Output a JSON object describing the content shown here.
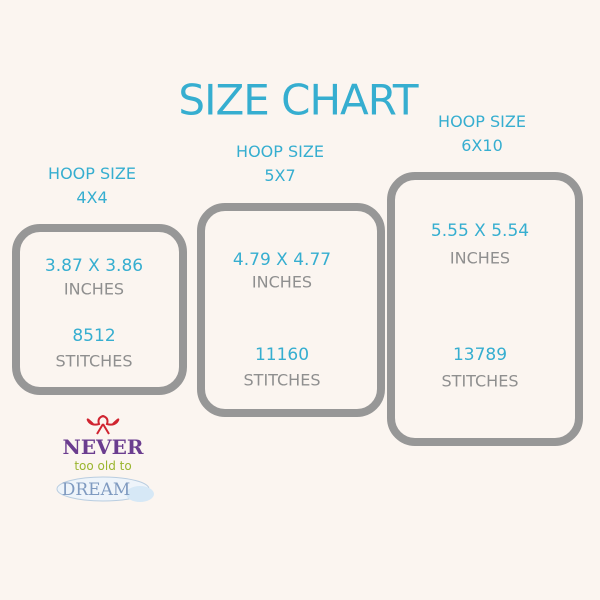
{
  "title": "SIZE CHART",
  "hoops": [
    {
      "label": "HOOP SIZE",
      "size": "4X4",
      "dimensions": "3.87 X 3.86",
      "dim_unit": "INCHES",
      "stitches": "8512",
      "stitch_unit": "STITCHES"
    },
    {
      "label": "HOOP SIZE",
      "size": "5X7",
      "dimensions": "4.79 X 4.77",
      "dim_unit": "INCHES",
      "stitches": "11160",
      "stitch_unit": "STITCHES"
    },
    {
      "label": "HOOP SIZE",
      "size": "6X10",
      "dimensions": "5.55 X 5.54",
      "dim_unit": "INCHES",
      "stitches": "13789",
      "stitch_unit": "STITCHES"
    }
  ],
  "logo": {
    "line1": "NEVER",
    "line2": "too old to",
    "line3": "DREAM"
  },
  "colors": {
    "accent": "#36aed0",
    "frame": "#979797",
    "background": "#fbf5f0"
  }
}
